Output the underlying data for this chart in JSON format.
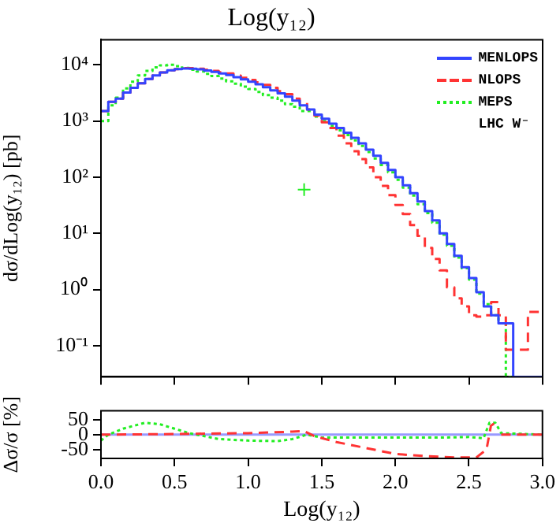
{
  "chart_data": [
    {
      "type": "histogram",
      "title": "Log(y₁₂)",
      "ylabel": "dσ/dLog(y₁₂) [pb]",
      "annotations": [
        "LHC W⁻"
      ],
      "bins": [
        0,
        0.05,
        0.1,
        0.15,
        0.2,
        0.25,
        0.3,
        0.35,
        0.4,
        0.45,
        0.5,
        0.55,
        0.6,
        0.65,
        0.7,
        0.75,
        0.8,
        0.85,
        0.9,
        0.95,
        1.0,
        1.05,
        1.1,
        1.15,
        1.2,
        1.25,
        1.3,
        1.35,
        1.4,
        1.45,
        1.5,
        1.55,
        1.6,
        1.65,
        1.7,
        1.75,
        1.8,
        1.85,
        1.9,
        1.95,
        2.0,
        2.05,
        2.1,
        2.15,
        2.2,
        2.25,
        2.3,
        2.35,
        2.4,
        2.45,
        2.5,
        2.55,
        2.6,
        2.65,
        2.7,
        2.75,
        2.8,
        2.85,
        2.9,
        2.95,
        3.0
      ],
      "series": [
        {
          "name": "MENLOPS",
          "color": "#3344ff",
          "line_style": "solid",
          "values": [
            1500,
            2200,
            2500,
            3200,
            3900,
            4700,
            5600,
            6500,
            7300,
            8000,
            8400,
            8600,
            8500,
            8300,
            7900,
            7500,
            7000,
            6600,
            6000,
            5500,
            5000,
            4500,
            4000,
            3500,
            3100,
            2700,
            2300,
            1900,
            1600,
            1300,
            1100,
            900,
            750,
            620,
            500,
            400,
            310,
            240,
            180,
            135,
            100,
            72,
            52,
            37,
            25,
            17,
            10,
            6.5,
            4,
            2.5,
            1.6,
            0.9,
            0.5,
            0.35,
            0.25,
            0.25,
            null,
            null,
            null,
            null
          ]
        },
        {
          "name": "NLOPS",
          "color": "#ff3333",
          "line_style": "dashed",
          "values": [
            1500,
            2200,
            2500,
            3200,
            3900,
            4700,
            5600,
            6500,
            7300,
            8000,
            8400,
            8700,
            8700,
            8500,
            8200,
            7800,
            7400,
            7000,
            6400,
            5900,
            5400,
            4900,
            4400,
            3900,
            3400,
            3000,
            2500,
            2100,
            1600,
            1250,
            950,
            750,
            550,
            400,
            290,
            210,
            150,
            100,
            70,
            48,
            32,
            22,
            14,
            9,
            5.5,
            3.5,
            2.2,
            1.1,
            0.7,
            0.5,
            0.35,
            0.33,
            0.35,
            0.6,
            0.35,
            0.085,
            0.085,
            0.085,
            0.4,
            0.4
          ]
        },
        {
          "name": "MEPS",
          "color": "#22ee22",
          "line_style": "dotted",
          "values": [
            1000,
            1900,
            2600,
            3800,
            5000,
            6500,
            7800,
            9000,
            9800,
            10000,
            9500,
            8800,
            8200,
            7600,
            6900,
            6300,
            5700,
            5100,
            4600,
            4100,
            3700,
            3300,
            2900,
            2600,
            2300,
            2000,
            1800,
            1500,
            1500,
            1200,
            1000,
            820,
            680,
            560,
            450,
            360,
            280,
            215,
            165,
            122,
            90,
            65,
            47,
            33,
            23,
            15.5,
            9.5,
            6,
            3.7,
            2.4,
            1.5,
            0.85,
            0.55,
            0.35,
            0.25,
            null,
            null,
            null,
            null,
            null
          ]
        },
        {
          "type": "scatter",
          "color": "#22ee22",
          "marker": "cross",
          "x": [
            1.38
          ],
          "values": [
            60
          ]
        }
      ],
      "xlim": [
        0,
        3
      ],
      "xticks": [
        0,
        0.5,
        1,
        1.5,
        2,
        2.5,
        3
      ],
      "ylim": [
        0.028,
        28000
      ],
      "yticks": [
        {
          "value": 0.1,
          "label": "10⁻¹"
        },
        {
          "value": 1,
          "label": "10⁰"
        },
        {
          "value": 10,
          "label": "10¹"
        },
        {
          "value": 100,
          "label": "10²"
        },
        {
          "value": 1000,
          "label": "10³"
        },
        {
          "value": 10000,
          "label": "10⁴"
        }
      ],
      "log": true,
      "legend": "top right",
      "tick_labels": "y"
    },
    {
      "type": "line",
      "xlabel": "Log(y₁₂)",
      "ylabel": "Δσ/σ [%]",
      "series": [
        {
          "color": "#ff3333",
          "line_style": "dashed",
          "x": [
            0,
            0.5,
            1.0,
            1.3,
            1.38,
            1.45,
            1.6,
            1.8,
            2.0,
            2.2,
            2.4,
            2.55,
            2.62,
            2.65,
            2.68,
            2.7,
            2.72,
            3.0
          ],
          "values": [
            0,
            2,
            5,
            10,
            12,
            -5,
            -25,
            -45,
            -65,
            -72,
            -77,
            -77,
            -50,
            30,
            40,
            null,
            0,
            0
          ]
        },
        {
          "color": "#22ee22",
          "line_style": "dotted",
          "x": [
            0,
            0.05,
            0.15,
            0.3,
            0.4,
            0.5,
            0.6,
            0.8,
            1.0,
            1.2,
            1.3,
            1.4,
            1.5,
            2.0,
            2.3,
            2.5,
            2.6,
            2.64,
            2.68,
            2.72,
            3.0
          ],
          "values": [
            -20,
            0,
            20,
            40,
            35,
            20,
            5,
            -15,
            -20,
            -22,
            -15,
            0,
            -10,
            -10,
            -10,
            -8,
            -12,
            40,
            40,
            5,
            0
          ]
        }
      ],
      "ref_lines": [
        {
          "axis": "y",
          "value": 0,
          "color": "#9999ff"
        }
      ],
      "xlim": [
        0,
        3
      ],
      "xticks": [
        {
          "value": 0,
          "label": "0.0"
        },
        0.5,
        {
          "value": 1,
          "label": "1.0"
        },
        1.5,
        {
          "value": 2,
          "label": "2.0"
        },
        2.5,
        {
          "value": 3,
          "label": "3.0"
        }
      ],
      "ylim": [
        -80,
        80
      ],
      "yticks": [
        -50,
        0,
        50
      ]
    }
  ]
}
